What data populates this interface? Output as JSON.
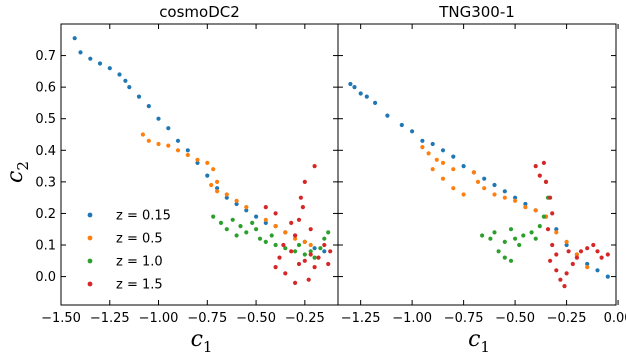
{
  "chart_data": {
    "type": "scatter",
    "ylabel_main": "c",
    "ylabel_sub": "2",
    "series_colors": [
      "#1f77b4",
      "#ff7f0e",
      "#2ca02c",
      "#d62728"
    ],
    "panels": [
      {
        "title": "cosmoDC2",
        "xlabel_main": "c",
        "xlabel_sub": "1",
        "xlim": [
          -1.5,
          -0.08
        ],
        "ylim": [
          -0.09,
          0.8
        ],
        "xticks": [
          -1.5,
          -1.25,
          -1.0,
          -0.75,
          -0.5,
          -0.25
        ],
        "xtick_labels": [
          "−1.50",
          "−1.25",
          "−1.00",
          "−0.75",
          "−0.50",
          "−0.25"
        ],
        "yticks": [
          0.0,
          0.1,
          0.2,
          0.3,
          0.4,
          0.5,
          0.6,
          0.7
        ],
        "ytick_labels": [
          "0.0",
          "0.1",
          "0.2",
          "0.3",
          "0.4",
          "0.5",
          "0.6",
          "0.7"
        ],
        "legend": {
          "position": "lower-left",
          "entries": [
            "z = 0.15",
            "z = 0.5",
            "z = 1.0",
            "z = 1.5"
          ]
        },
        "series": [
          {
            "name": "z = 0.15",
            "points": [
              [
                -1.43,
                0.755
              ],
              [
                -1.4,
                0.71
              ],
              [
                -1.35,
                0.69
              ],
              [
                -1.3,
                0.675
              ],
              [
                -1.25,
                0.66
              ],
              [
                -1.2,
                0.64
              ],
              [
                -1.17,
                0.62
              ],
              [
                -1.15,
                0.6
              ],
              [
                -1.1,
                0.57
              ],
              [
                -1.05,
                0.54
              ],
              [
                -1.0,
                0.5
              ],
              [
                -0.95,
                0.47
              ],
              [
                -0.9,
                0.43
              ],
              [
                -0.85,
                0.4
              ],
              [
                -0.8,
                0.36
              ],
              [
                -0.75,
                0.32
              ],
              [
                -0.7,
                0.28
              ],
              [
                -0.65,
                0.25
              ],
              [
                -0.6,
                0.23
              ],
              [
                -0.55,
                0.21
              ],
              [
                -0.5,
                0.19
              ],
              [
                -0.45,
                0.17
              ],
              [
                -0.4,
                0.16
              ],
              [
                -0.35,
                0.14
              ],
              [
                -0.3,
                0.13
              ],
              [
                -0.25,
                0.11
              ],
              [
                -0.2,
                0.09
              ],
              [
                -0.15,
                0.08
              ]
            ]
          },
          {
            "name": "z = 0.5",
            "points": [
              [
                -1.08,
                0.45
              ],
              [
                -1.05,
                0.43
              ],
              [
                -1.0,
                0.42
              ],
              [
                -0.95,
                0.415
              ],
              [
                -0.9,
                0.4
              ],
              [
                -0.85,
                0.385
              ],
              [
                -0.8,
                0.37
              ],
              [
                -0.75,
                0.36
              ],
              [
                -0.72,
                0.34
              ],
              [
                -0.7,
                0.3
              ],
              [
                -0.73,
                0.29
              ],
              [
                -0.7,
                0.27
              ],
              [
                -0.65,
                0.26
              ],
              [
                -0.6,
                0.24
              ],
              [
                -0.55,
                0.22
              ],
              [
                -0.45,
                0.18
              ],
              [
                -0.4,
                0.16
              ],
              [
                -0.35,
                0.14
              ],
              [
                -0.3,
                0.12
              ],
              [
                -0.25,
                0.11
              ],
              [
                -0.22,
                0.1
              ]
            ]
          },
          {
            "name": "z = 1.0",
            "points": [
              [
                -0.72,
                0.19
              ],
              [
                -0.68,
                0.17
              ],
              [
                -0.65,
                0.15
              ],
              [
                -0.62,
                0.18
              ],
              [
                -0.58,
                0.16
              ],
              [
                -0.55,
                0.14
              ],
              [
                -0.5,
                0.15
              ],
              [
                -0.48,
                0.12
              ],
              [
                -0.45,
                0.11
              ],
              [
                -0.4,
                0.1
              ],
              [
                -0.35,
                0.09
              ],
              [
                -0.3,
                0.08
              ],
              [
                -0.28,
                0.1
              ],
              [
                -0.25,
                0.07
              ],
              [
                -0.22,
                0.08
              ],
              [
                -0.2,
                0.06
              ],
              [
                -0.17,
                0.09
              ],
              [
                -0.15,
                0.12
              ],
              [
                -0.13,
                0.14
              ],
              [
                -0.6,
                0.13
              ],
              [
                -0.52,
                0.17
              ],
              [
                -0.42,
                0.13
              ]
            ]
          },
          {
            "name": "z = 1.5",
            "points": [
              [
                -0.4,
                0.03
              ],
              [
                -0.38,
                0.06
              ],
              [
                -0.35,
                0.01
              ],
              [
                -0.32,
                0.08
              ],
              [
                -0.3,
                -0.02
              ],
              [
                -0.28,
                0.04
              ],
              [
                -0.25,
                0.05
              ],
              [
                -0.23,
                -0.01
              ],
              [
                -0.22,
                0.07
              ],
              [
                -0.2,
                0.03
              ],
              [
                -0.18,
                0.06
              ],
              [
                -0.15,
                0.1
              ],
              [
                -0.13,
                0.04
              ],
              [
                -0.12,
                0.08
              ],
              [
                -0.3,
                0.13
              ],
              [
                -0.28,
                0.18
              ],
              [
                -0.26,
                0.22
              ],
              [
                -0.25,
                0.3
              ],
              [
                -0.27,
                0.25
              ],
              [
                -0.2,
                0.35
              ],
              [
                -0.22,
                0.15
              ],
              [
                -0.32,
                0.17
              ],
              [
                -0.4,
                0.2
              ],
              [
                -0.45,
                0.22
              ],
              [
                -0.36,
                0.1
              ]
            ]
          }
        ]
      },
      {
        "title": "TNG300-1",
        "xlabel_main": "c",
        "xlabel_sub": "1",
        "xlim": [
          -1.36,
          -0.01
        ],
        "ylim": [
          -0.09,
          0.8
        ],
        "xticks": [
          -1.25,
          -1.0,
          -0.75,
          -0.5,
          -0.25,
          0.0
        ],
        "xtick_labels": [
          "−1.25",
          "−1.00",
          "−0.75",
          "−0.50",
          "−0.25",
          "0.00"
        ],
        "yticks": [
          0.0,
          0.1,
          0.2,
          0.3,
          0.4,
          0.5,
          0.6,
          0.7
        ],
        "series": [
          {
            "name": "z = 0.15",
            "points": [
              [
                -1.3,
                0.61
              ],
              [
                -1.28,
                0.6
              ],
              [
                -1.25,
                0.58
              ],
              [
                -1.22,
                0.57
              ],
              [
                -1.18,
                0.55
              ],
              [
                -1.12,
                0.51
              ],
              [
                -1.05,
                0.48
              ],
              [
                -1.0,
                0.46
              ],
              [
                -0.95,
                0.43
              ],
              [
                -0.9,
                0.42
              ],
              [
                -0.85,
                0.4
              ],
              [
                -0.8,
                0.38
              ],
              [
                -0.75,
                0.35
              ],
              [
                -0.7,
                0.33
              ],
              [
                -0.65,
                0.31
              ],
              [
                -0.6,
                0.29
              ],
              [
                -0.55,
                0.27
              ],
              [
                -0.5,
                0.25
              ],
              [
                -0.45,
                0.23
              ],
              [
                -0.4,
                0.21
              ],
              [
                -0.35,
                0.19
              ],
              [
                -0.3,
                0.15
              ],
              [
                -0.25,
                0.1
              ],
              [
                -0.2,
                0.07
              ],
              [
                -0.15,
                0.04
              ],
              [
                -0.1,
                0.02
              ],
              [
                -0.05,
                0.0
              ]
            ]
          },
          {
            "name": "z = 0.5",
            "points": [
              [
                -0.95,
                0.41
              ],
              [
                -0.92,
                0.39
              ],
              [
                -0.88,
                0.37
              ],
              [
                -0.85,
                0.36
              ],
              [
                -0.8,
                0.34
              ],
              [
                -0.9,
                0.34
              ],
              [
                -0.85,
                0.31
              ],
              [
                -0.8,
                0.28
              ],
              [
                -0.75,
                0.26
              ],
              [
                -0.7,
                0.33
              ],
              [
                -0.68,
                0.3
              ],
              [
                -0.65,
                0.28
              ],
              [
                -0.6,
                0.26
              ],
              [
                -0.55,
                0.25
              ],
              [
                -0.5,
                0.24
              ],
              [
                -0.45,
                0.22
              ],
              [
                -0.4,
                0.21
              ],
              [
                -0.35,
                0.19
              ],
              [
                -0.3,
                0.14
              ],
              [
                -0.25,
                0.11
              ],
              [
                -0.2,
                0.07
              ],
              [
                -0.15,
                0.03
              ]
            ]
          },
          {
            "name": "z = 1.0",
            "points": [
              [
                -0.66,
                0.13
              ],
              [
                -0.62,
                0.12
              ],
              [
                -0.6,
                0.14
              ],
              [
                -0.55,
                0.11
              ],
              [
                -0.52,
                0.15
              ],
              [
                -0.5,
                0.12
              ],
              [
                -0.48,
                0.1
              ],
              [
                -0.46,
                0.13
              ],
              [
                -0.42,
                0.14
              ],
              [
                -0.4,
                0.12
              ],
              [
                -0.38,
                0.16
              ],
              [
                -0.36,
                0.19
              ],
              [
                -0.58,
                0.08
              ],
              [
                -0.55,
                0.06
              ],
              [
                -0.52,
                0.05
              ],
              [
                -0.35,
                0.3
              ],
              [
                -0.34,
                0.25
              ]
            ]
          },
          {
            "name": "z = 1.5",
            "points": [
              [
                -0.4,
                0.35
              ],
              [
                -0.38,
                0.32
              ],
              [
                -0.36,
                0.36
              ],
              [
                -0.35,
                0.3
              ],
              [
                -0.33,
                0.25
              ],
              [
                -0.32,
                0.2
              ],
              [
                -0.34,
                0.15
              ],
              [
                -0.32,
                0.1
              ],
              [
                -0.33,
                0.05
              ],
              [
                -0.3,
                0.02
              ],
              [
                -0.28,
                -0.01
              ],
              [
                -0.26,
                -0.03
              ],
              [
                -0.25,
                0.01
              ],
              [
                -0.22,
                0.04
              ],
              [
                -0.2,
                0.06
              ],
              [
                -0.18,
                0.08
              ],
              [
                -0.15,
                0.09
              ],
              [
                -0.12,
                0.1
              ],
              [
                -0.1,
                0.08
              ],
              [
                -0.08,
                0.06
              ],
              [
                -0.05,
                0.07
              ],
              [
                -0.3,
                0.07
              ],
              [
                -0.24,
                0.08
              ]
            ]
          }
        ]
      }
    ]
  }
}
